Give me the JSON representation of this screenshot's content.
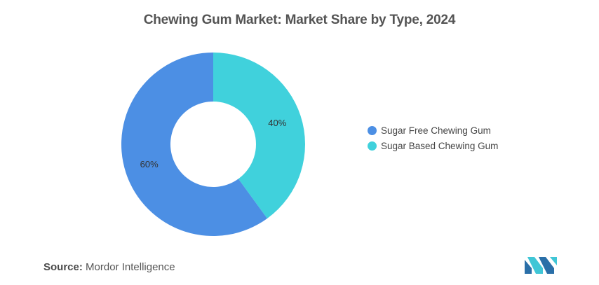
{
  "header": {
    "title": "Chewing Gum Market: Market Share by Type, 2024"
  },
  "chart_data": {
    "type": "pie",
    "variant": "donut",
    "categories": [
      "Sugar Free Chewing Gum",
      "Sugar Based Chewing Gum"
    ],
    "values": [
      60,
      40
    ],
    "value_labels": [
      "60%",
      "40%"
    ],
    "colors": [
      "#4c8fe4",
      "#40d1dc"
    ],
    "legend_position": "right"
  },
  "legend": {
    "items": [
      {
        "label": "Sugar Free Chewing Gum",
        "color": "#4c8fe4"
      },
      {
        "label": "Sugar Based Chewing Gum",
        "color": "#40d1dc"
      }
    ]
  },
  "footer": {
    "source_label": "Source:",
    "source_value": "Mordor Intelligence"
  },
  "logo": {
    "icon": "mordor-intelligence-logo",
    "colors": [
      "#2a6fa8",
      "#40c6d6"
    ]
  }
}
